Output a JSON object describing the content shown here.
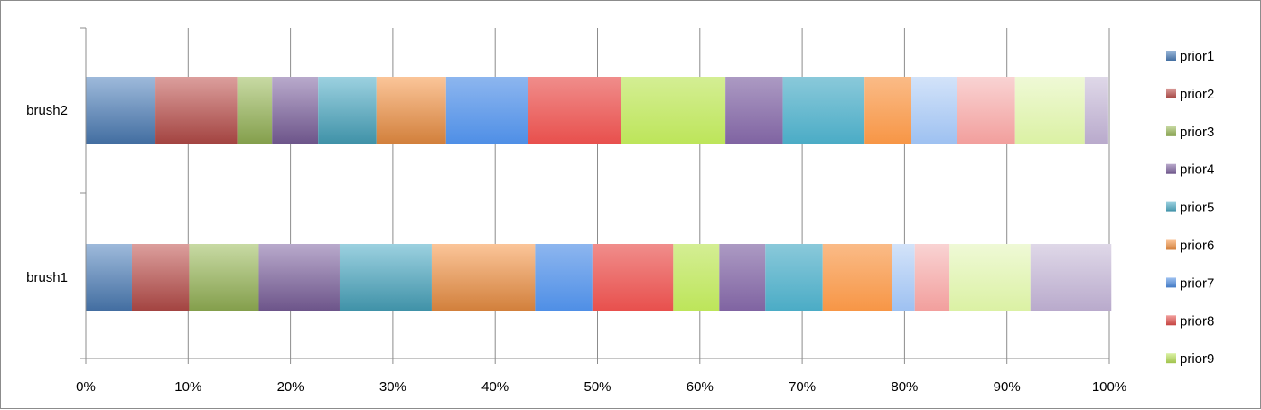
{
  "chart_data": {
    "type": "bar",
    "orientation": "horizontal",
    "stacked": "percent",
    "categories": [
      "brush1",
      "brush2"
    ],
    "x_ticks": [
      "0%",
      "10%",
      "20%",
      "30%",
      "40%",
      "50%",
      "60%",
      "70%",
      "80%",
      "90%",
      "100%"
    ],
    "xlim": [
      0,
      100
    ],
    "grid": "vertical major gridlines",
    "legend_position": "right",
    "segments": [
      {
        "group": "prior1",
        "values": [
          4.5,
          6.8
        ]
      },
      {
        "group": "prior2",
        "values": [
          5.6,
          8.0
        ]
      },
      {
        "group": "prior3",
        "values": [
          6.8,
          3.4
        ]
      },
      {
        "group": "prior4",
        "values": [
          7.9,
          4.5
        ]
      },
      {
        "group": "prior5",
        "values": [
          9.0,
          5.7
        ]
      },
      {
        "group": "prior6",
        "values": [
          10.1,
          6.8
        ]
      },
      {
        "group": "prior7",
        "values": [
          5.6,
          8.0
        ]
      },
      {
        "group": "prior8",
        "values": [
          7.9,
          9.1
        ]
      },
      {
        "group": "prior9",
        "values": [
          4.5,
          10.2
        ]
      },
      {
        "group": "prior4",
        "values": [
          4.5,
          5.6
        ]
      },
      {
        "group": "prior5",
        "values": [
          5.6,
          8.0
        ]
      },
      {
        "group": "prior6",
        "values": [
          6.8,
          4.5
        ]
      },
      {
        "group": "prior7",
        "values": [
          2.2,
          4.5
        ]
      },
      {
        "group": "prior8",
        "values": [
          3.4,
          5.7
        ]
      },
      {
        "group": "prior9",
        "values": [
          7.9,
          6.8
        ]
      },
      {
        "group": "prior4",
        "values": [
          7.9,
          2.3
        ]
      }
    ],
    "legend": [
      "prior1",
      "prior2",
      "prior3",
      "prior4",
      "prior5",
      "prior6",
      "prior7",
      "prior8",
      "prior9"
    ]
  },
  "colors": {
    "prior1": "#4f81bd",
    "prior2": "#c0504d",
    "prior3": "#9bbb59",
    "prior4": "#8064a2",
    "prior5": "#4bacc6",
    "prior6": "#f79646",
    "prior7": "#4f8fe6",
    "prior8": "#e8504d",
    "prior9": "#bde55a"
  },
  "segment_styles": [
    "dark",
    "dark",
    "dark",
    "dark",
    "dark",
    "dark",
    "bright",
    "bright",
    "bright",
    "bright",
    "bright",
    "bright",
    "pale",
    "pale",
    "pale",
    "pale"
  ]
}
